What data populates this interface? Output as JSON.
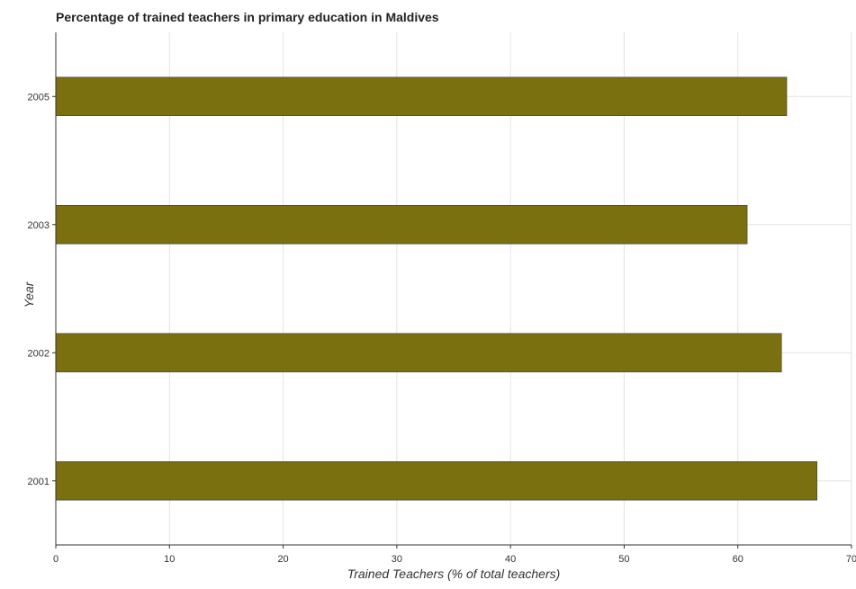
{
  "chart_data": {
    "type": "bar",
    "orientation": "horizontal",
    "title": "Percentage of trained teachers in primary education in Maldives",
    "xlabel": "Trained Teachers (% of total teachers)",
    "ylabel": "Year",
    "categories": [
      "2001",
      "2002",
      "2003",
      "2005"
    ],
    "values": [
      66.96,
      63.84,
      60.82,
      64.3
    ],
    "xlim": [
      0,
      70
    ],
    "xticks": [
      0,
      10,
      20,
      30,
      40,
      50,
      60,
      70
    ],
    "grid": true,
    "legend": "none",
    "bar_color": "#7a7010"
  }
}
